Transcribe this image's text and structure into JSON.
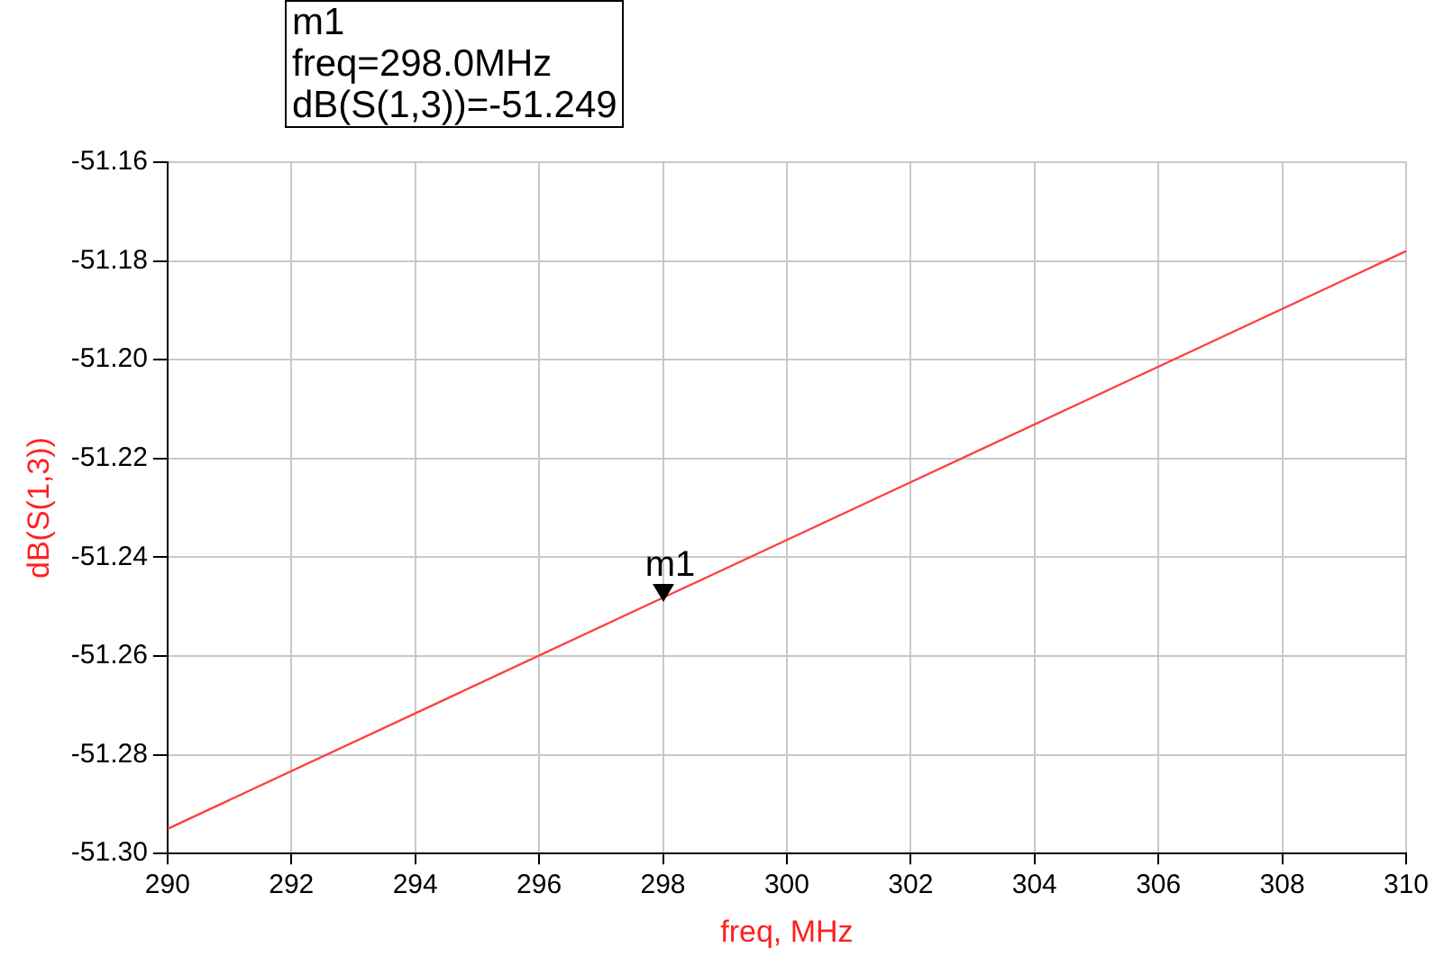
{
  "chart_data": {
    "type": "line",
    "xlabel": "freq, MHz",
    "ylabel": "dB(S(1,3))",
    "x": [
      290,
      310
    ],
    "series": [
      {
        "color": "#ff4040",
        "values": [
          -51.295,
          -51.178
        ]
      }
    ],
    "xlim": [
      290,
      310
    ],
    "xticks": [
      290,
      292,
      294,
      296,
      298,
      300,
      302,
      304,
      306,
      308,
      310
    ],
    "ylim": [
      -51.3,
      -51.16
    ],
    "yticks": [
      {
        "value": -51.3,
        "label": "-51.30"
      },
      -51.28,
      -51.26,
      -51.24,
      -51.22,
      {
        "value": -51.2,
        "label": "-51.20"
      },
      -51.18,
      -51.16
    ],
    "grid": true,
    "legend": false,
    "marker": "none",
    "line_style": "solid",
    "annotations": [
      "m1",
      "freq=298.0MHz",
      "dB(S(1,3))=-51.249",
      {
        "text": "m1",
        "x": 298,
        "y": -51.249
      }
    ]
  }
}
